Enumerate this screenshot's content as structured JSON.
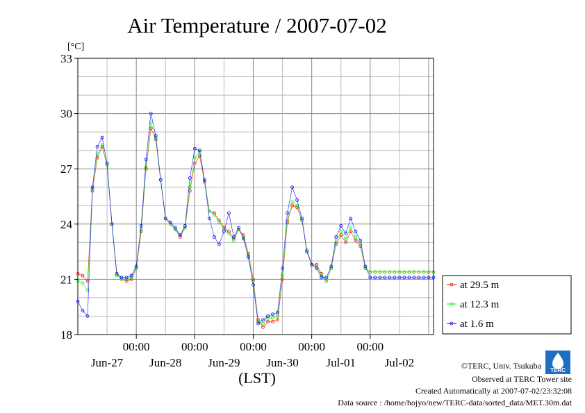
{
  "chart_data": {
    "type": "line",
    "title": "Air Temperature / 2007-07-02",
    "ylabel": "[°C]",
    "xlabel": "(LST)",
    "ylim": [
      18,
      33
    ],
    "yticks": [
      18,
      21,
      24,
      27,
      30,
      33
    ],
    "ytick_labels": [
      "18",
      "21",
      "24",
      "27",
      "30",
      "33"
    ],
    "x_unit": "hours since Jun-27 00:00 LST",
    "xlim": [
      0,
      146
    ],
    "xticks_midnight": [
      24,
      48,
      72,
      96,
      120
    ],
    "xtick_time_labels": [
      "00:00",
      "00:00",
      "00:00",
      "00:00",
      "00:00"
    ],
    "day_labels": [
      {
        "text": "Jun-27",
        "x": 12
      },
      {
        "text": "Jun-28",
        "x": 36
      },
      {
        "text": "Jun-29",
        "x": 60
      },
      {
        "text": "Jun-30",
        "x": 84
      },
      {
        "text": "Jul-01",
        "x": 108
      },
      {
        "text": "Jul-02",
        "x": 132
      }
    ],
    "grid": true,
    "legend_position": "right-bottom",
    "series": [
      {
        "name": "at 29.5 m",
        "color": "#ff0000",
        "x": [
          0,
          2,
          4,
          6,
          8,
          10,
          12,
          14,
          16,
          18,
          20,
          22,
          24,
          26,
          28,
          30,
          32,
          34,
          36,
          38,
          40,
          42,
          44,
          46,
          48,
          50,
          52,
          54,
          56,
          58,
          60,
          62,
          64,
          66,
          68,
          70,
          72,
          74,
          76,
          78,
          80,
          82,
          84,
          86,
          88,
          90,
          92,
          94,
          96,
          98,
          100,
          102,
          104,
          106,
          108,
          110,
          112,
          114,
          116,
          118,
          120,
          122,
          124,
          126,
          128,
          130,
          132,
          134,
          136,
          138,
          140,
          142,
          144,
          146
        ],
        "values": [
          21.3,
          21.2,
          20.9,
          25.8,
          27.6,
          28.2,
          27.2,
          24.0,
          21.3,
          21.0,
          20.9,
          21.0,
          21.6,
          23.6,
          27.0,
          29.2,
          28.6,
          26.4,
          24.3,
          24.0,
          23.7,
          23.3,
          23.8,
          25.8,
          27.3,
          27.7,
          26.3,
          24.7,
          24.6,
          24.2,
          23.8,
          23.6,
          23.2,
          23.7,
          23.4,
          22.4,
          21.0,
          18.8,
          18.4,
          18.7,
          18.7,
          18.8,
          21.0,
          24.1,
          25.0,
          24.9,
          24.2,
          22.6,
          21.8,
          21.8,
          21.3,
          20.9,
          21.6,
          22.9,
          23.4,
          23.0,
          23.6,
          23.1,
          22.8,
          21.6,
          21.4,
          21.4,
          21.4,
          21.4,
          21.4,
          21.4,
          21.4,
          21.4,
          21.4,
          21.4,
          21.4,
          21.4,
          21.4,
          21.4
        ]
      },
      {
        "name": "at 12.3 m",
        "color": "#00ff00",
        "x": [
          0,
          2,
          4,
          6,
          8,
          10,
          12,
          14,
          16,
          18,
          20,
          22,
          24,
          26,
          28,
          30,
          32,
          34,
          36,
          38,
          40,
          42,
          44,
          46,
          48,
          50,
          52,
          54,
          56,
          58,
          60,
          62,
          64,
          66,
          68,
          70,
          72,
          74,
          76,
          78,
          80,
          82,
          84,
          86,
          88,
          90,
          92,
          94,
          96,
          98,
          100,
          102,
          104,
          106,
          108,
          110,
          112,
          114,
          116,
          118,
          120,
          122,
          124,
          126,
          128,
          130,
          132,
          134,
          136,
          138,
          140,
          142,
          144,
          146
        ],
        "values": [
          20.9,
          20.8,
          20.4,
          25.9,
          27.8,
          28.3,
          27.2,
          24.0,
          21.2,
          21.0,
          21.0,
          21.1,
          21.6,
          23.7,
          27.1,
          29.5,
          28.7,
          26.4,
          24.3,
          24.0,
          23.7,
          23.4,
          23.8,
          26.0,
          27.6,
          27.9,
          26.4,
          24.7,
          24.5,
          24.1,
          23.7,
          23.5,
          23.1,
          23.7,
          23.3,
          22.3,
          20.9,
          18.7,
          18.6,
          18.9,
          18.9,
          19.0,
          21.2,
          24.2,
          25.2,
          25.0,
          24.2,
          22.6,
          21.8,
          21.7,
          21.2,
          20.9,
          21.6,
          23.0,
          23.6,
          23.2,
          23.8,
          23.3,
          22.9,
          21.6,
          21.4,
          21.4,
          21.4,
          21.4,
          21.4,
          21.4,
          21.4,
          21.4,
          21.4,
          21.4,
          21.4,
          21.4,
          21.4,
          21.4
        ]
      },
      {
        "name": "at 1.6 m",
        "color": "#0000ff",
        "x": [
          0,
          2,
          4,
          6,
          8,
          10,
          12,
          14,
          16,
          18,
          20,
          22,
          24,
          26,
          28,
          30,
          32,
          34,
          36,
          38,
          40,
          42,
          44,
          46,
          48,
          50,
          52,
          54,
          56,
          58,
          60,
          62,
          64,
          66,
          68,
          70,
          72,
          74,
          76,
          78,
          80,
          82,
          84,
          86,
          88,
          90,
          92,
          94,
          96,
          98,
          100,
          102,
          104,
          106,
          108,
          110,
          112,
          114,
          116,
          118,
          120,
          122,
          124,
          126,
          128,
          130,
          132,
          134,
          136,
          138,
          140,
          142,
          144,
          146
        ],
        "values": [
          19.8,
          19.3,
          19.0,
          26.0,
          28.2,
          28.7,
          27.3,
          24.0,
          21.3,
          21.1,
          21.1,
          21.2,
          21.7,
          23.9,
          27.5,
          30.0,
          28.8,
          26.4,
          24.3,
          24.1,
          23.8,
          23.4,
          23.9,
          26.5,
          28.1,
          28.0,
          26.4,
          24.3,
          23.3,
          22.9,
          23.6,
          24.6,
          23.3,
          23.8,
          23.2,
          22.2,
          20.7,
          18.6,
          18.8,
          19.0,
          19.1,
          19.2,
          21.6,
          24.6,
          26.0,
          25.3,
          24.3,
          22.5,
          21.8,
          21.6,
          21.1,
          21.1,
          21.7,
          23.3,
          23.9,
          23.5,
          24.3,
          23.6,
          23.1,
          21.7,
          21.1,
          21.1,
          21.1,
          21.1,
          21.1,
          21.1,
          21.1,
          21.1,
          21.1,
          21.1,
          21.1,
          21.1,
          21.1,
          21.1
        ]
      }
    ]
  },
  "credits": {
    "line1": "©TERC, Univ. Tsukuba",
    "line2": "Observed at TERC Tower site",
    "line3": "Created Automatically at 2007-07-02/23:32:08",
    "line4": "Data source : /home/hojyo/new/TERC-data/sorted_data/MET.30m.dat"
  },
  "logo": {
    "text": "TERC",
    "color": "#1e6fc0"
  }
}
